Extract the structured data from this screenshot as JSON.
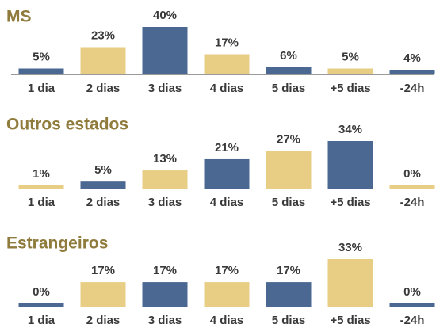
{
  "chart_data": [
    {
      "type": "bar",
      "title": "MS",
      "categories": [
        "1 dia",
        "2 dias",
        "3 dias",
        "4 dias",
        "5 dias",
        "+5 dias",
        "-24h"
      ],
      "values": [
        5,
        23,
        40,
        17,
        6,
        5,
        4
      ],
      "value_labels": [
        "5%",
        "23%",
        "40%",
        "17%",
        "6%",
        "5%",
        "4%"
      ],
      "colors": [
        "#4a6891",
        "#e8cd84",
        "#4a6891",
        "#e8cd84",
        "#4a6891",
        "#e8cd84",
        "#4a6891"
      ]
    },
    {
      "type": "bar",
      "title": "Outros estados",
      "categories": [
        "1 dia",
        "2 dias",
        "3 dias",
        "4 dias",
        "5 dias",
        "+5 dias",
        "-24h"
      ],
      "values": [
        1,
        5,
        13,
        21,
        27,
        34,
        0
      ],
      "value_labels": [
        "1%",
        "5%",
        "13%",
        "21%",
        "27%",
        "34%",
        "0%"
      ],
      "colors": [
        "#e8cd84",
        "#4a6891",
        "#e8cd84",
        "#4a6891",
        "#e8cd84",
        "#4a6891",
        "#e8cd84"
      ]
    },
    {
      "type": "bar",
      "title": "Estrangeiros",
      "categories": [
        "1 dia",
        "2 dias",
        "3 dias",
        "4 dias",
        "5 dias",
        "+5 dias",
        "-24h"
      ],
      "values": [
        0,
        17,
        17,
        17,
        17,
        33,
        0
      ],
      "value_labels": [
        "0%",
        "17%",
        "17%",
        "17%",
        "17%",
        "33%",
        "0%"
      ],
      "colors": [
        "#4a6891",
        "#e8cd84",
        "#4a6891",
        "#e8cd84",
        "#4a6891",
        "#e8cd84",
        "#4a6891"
      ]
    }
  ]
}
